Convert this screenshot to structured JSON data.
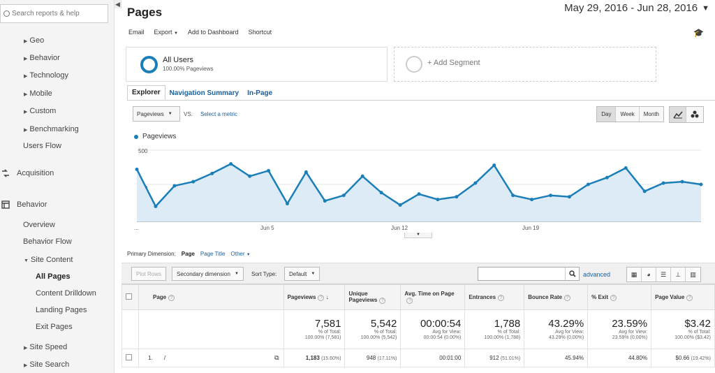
{
  "sidebar": {
    "search_placeholder": "Search reports & help",
    "items": [
      {
        "label": "Geo",
        "arrow": "right"
      },
      {
        "label": "Behavior",
        "arrow": "right"
      },
      {
        "label": "Technology",
        "arrow": "right"
      },
      {
        "label": "Mobile",
        "arrow": "right"
      },
      {
        "label": "Custom",
        "arrow": "right"
      },
      {
        "label": "Benchmarking",
        "arrow": "right"
      },
      {
        "label": "Users Flow"
      },
      {
        "label": "Acquisition",
        "icon": "acquisition-icon"
      },
      {
        "label": "Behavior",
        "icon": "behavior-icon"
      },
      {
        "label": "Overview"
      },
      {
        "label": "Behavior Flow"
      },
      {
        "label": "Site Content",
        "arrow": "down"
      },
      {
        "label": "All Pages",
        "active": true
      },
      {
        "label": "Content Drilldown"
      },
      {
        "label": "Landing Pages"
      },
      {
        "label": "Exit Pages"
      },
      {
        "label": "Site Speed",
        "arrow": "right"
      },
      {
        "label": "Site Search",
        "arrow": "right"
      }
    ]
  },
  "header": {
    "title": "Pages",
    "date_range": "May 29, 2016 - Jun 28, 2016"
  },
  "toolbar": {
    "email": "Email",
    "export": "Export",
    "add_to_dashboard": "Add to Dashboard",
    "shortcut": "Shortcut"
  },
  "segments": {
    "active_name": "All Users",
    "active_sub": "100.00% Pageviews",
    "add_label": "+ Add Segment"
  },
  "tabs": [
    "Explorer",
    "Navigation Summary",
    "In-Page"
  ],
  "chart_controls": {
    "metric": "Pageviews",
    "vs": "VS.",
    "select_metric": "Select a metric",
    "periods": [
      "Day",
      "Week",
      "Month"
    ],
    "selected_period": "Day"
  },
  "chart_data": {
    "type": "area",
    "series": [
      {
        "name": "Pageviews",
        "values": [
          380,
          110,
          260,
          290,
          350,
          420,
          330,
          370,
          130,
          360,
          150,
          190,
          330,
          210,
          120,
          200,
          160,
          180,
          280,
          410,
          190,
          160,
          190,
          180,
          270,
          320,
          390,
          220,
          280,
          290,
          270
        ]
      }
    ],
    "x_labels": [
      "...",
      "Jun 5",
      "Jun 12",
      "Jun 19"
    ],
    "y_ticks": [
      250,
      500
    ],
    "ylim": [
      0,
      520
    ],
    "color": "#1a7fb8"
  },
  "primary_dimension": {
    "label": "Primary Dimension:",
    "options": [
      "Page",
      "Page Title",
      "Other"
    ],
    "selected": "Page"
  },
  "table_controls": {
    "plot_rows": "Plot Rows",
    "secondary_dimension": "Secondary dimension",
    "sort_type_label": "Sort Type:",
    "sort_type": "Default",
    "advanced": "advanced"
  },
  "table": {
    "headers": [
      "Page",
      "Pageviews",
      "Unique Pageviews",
      "Avg. Time on Page",
      "Entrances",
      "Bounce Rate",
      "% Exit",
      "Page Value"
    ],
    "totals": [
      {
        "value": "7,581",
        "sub1": "% of Total:",
        "sub2": "100.00% (7,581)"
      },
      {
        "value": "5,542",
        "sub1": "% of Total:",
        "sub2": "100.00% (5,542)"
      },
      {
        "value": "00:00:54",
        "sub1": "Avg for View:",
        "sub2": "00:00:54 (0.00%)"
      },
      {
        "value": "1,788",
        "sub1": "% of Total:",
        "sub2": "100.00% (1,788)"
      },
      {
        "value": "43.29%",
        "sub1": "Avg for View:",
        "sub2": "43.29% (0.00%)"
      },
      {
        "value": "23.59%",
        "sub1": "Avg for View:",
        "sub2": "23.59% (0.00%)"
      },
      {
        "value": "$3.42",
        "sub1": "% of Total:",
        "sub2": "100.00% ($3.42)"
      }
    ],
    "rows": [
      {
        "index": "1.",
        "page": "/",
        "pageviews": "1,183",
        "pageviews_pct": "(15.60%)",
        "unique": "948",
        "unique_pct": "(17.11%)",
        "avg_time": "00:01:00",
        "entrances": "912",
        "entrances_pct": "(51.01%)",
        "bounce": "45.94%",
        "exit": "44.80%",
        "value": "$0.66",
        "value_pct": "(19.42%)"
      }
    ]
  }
}
